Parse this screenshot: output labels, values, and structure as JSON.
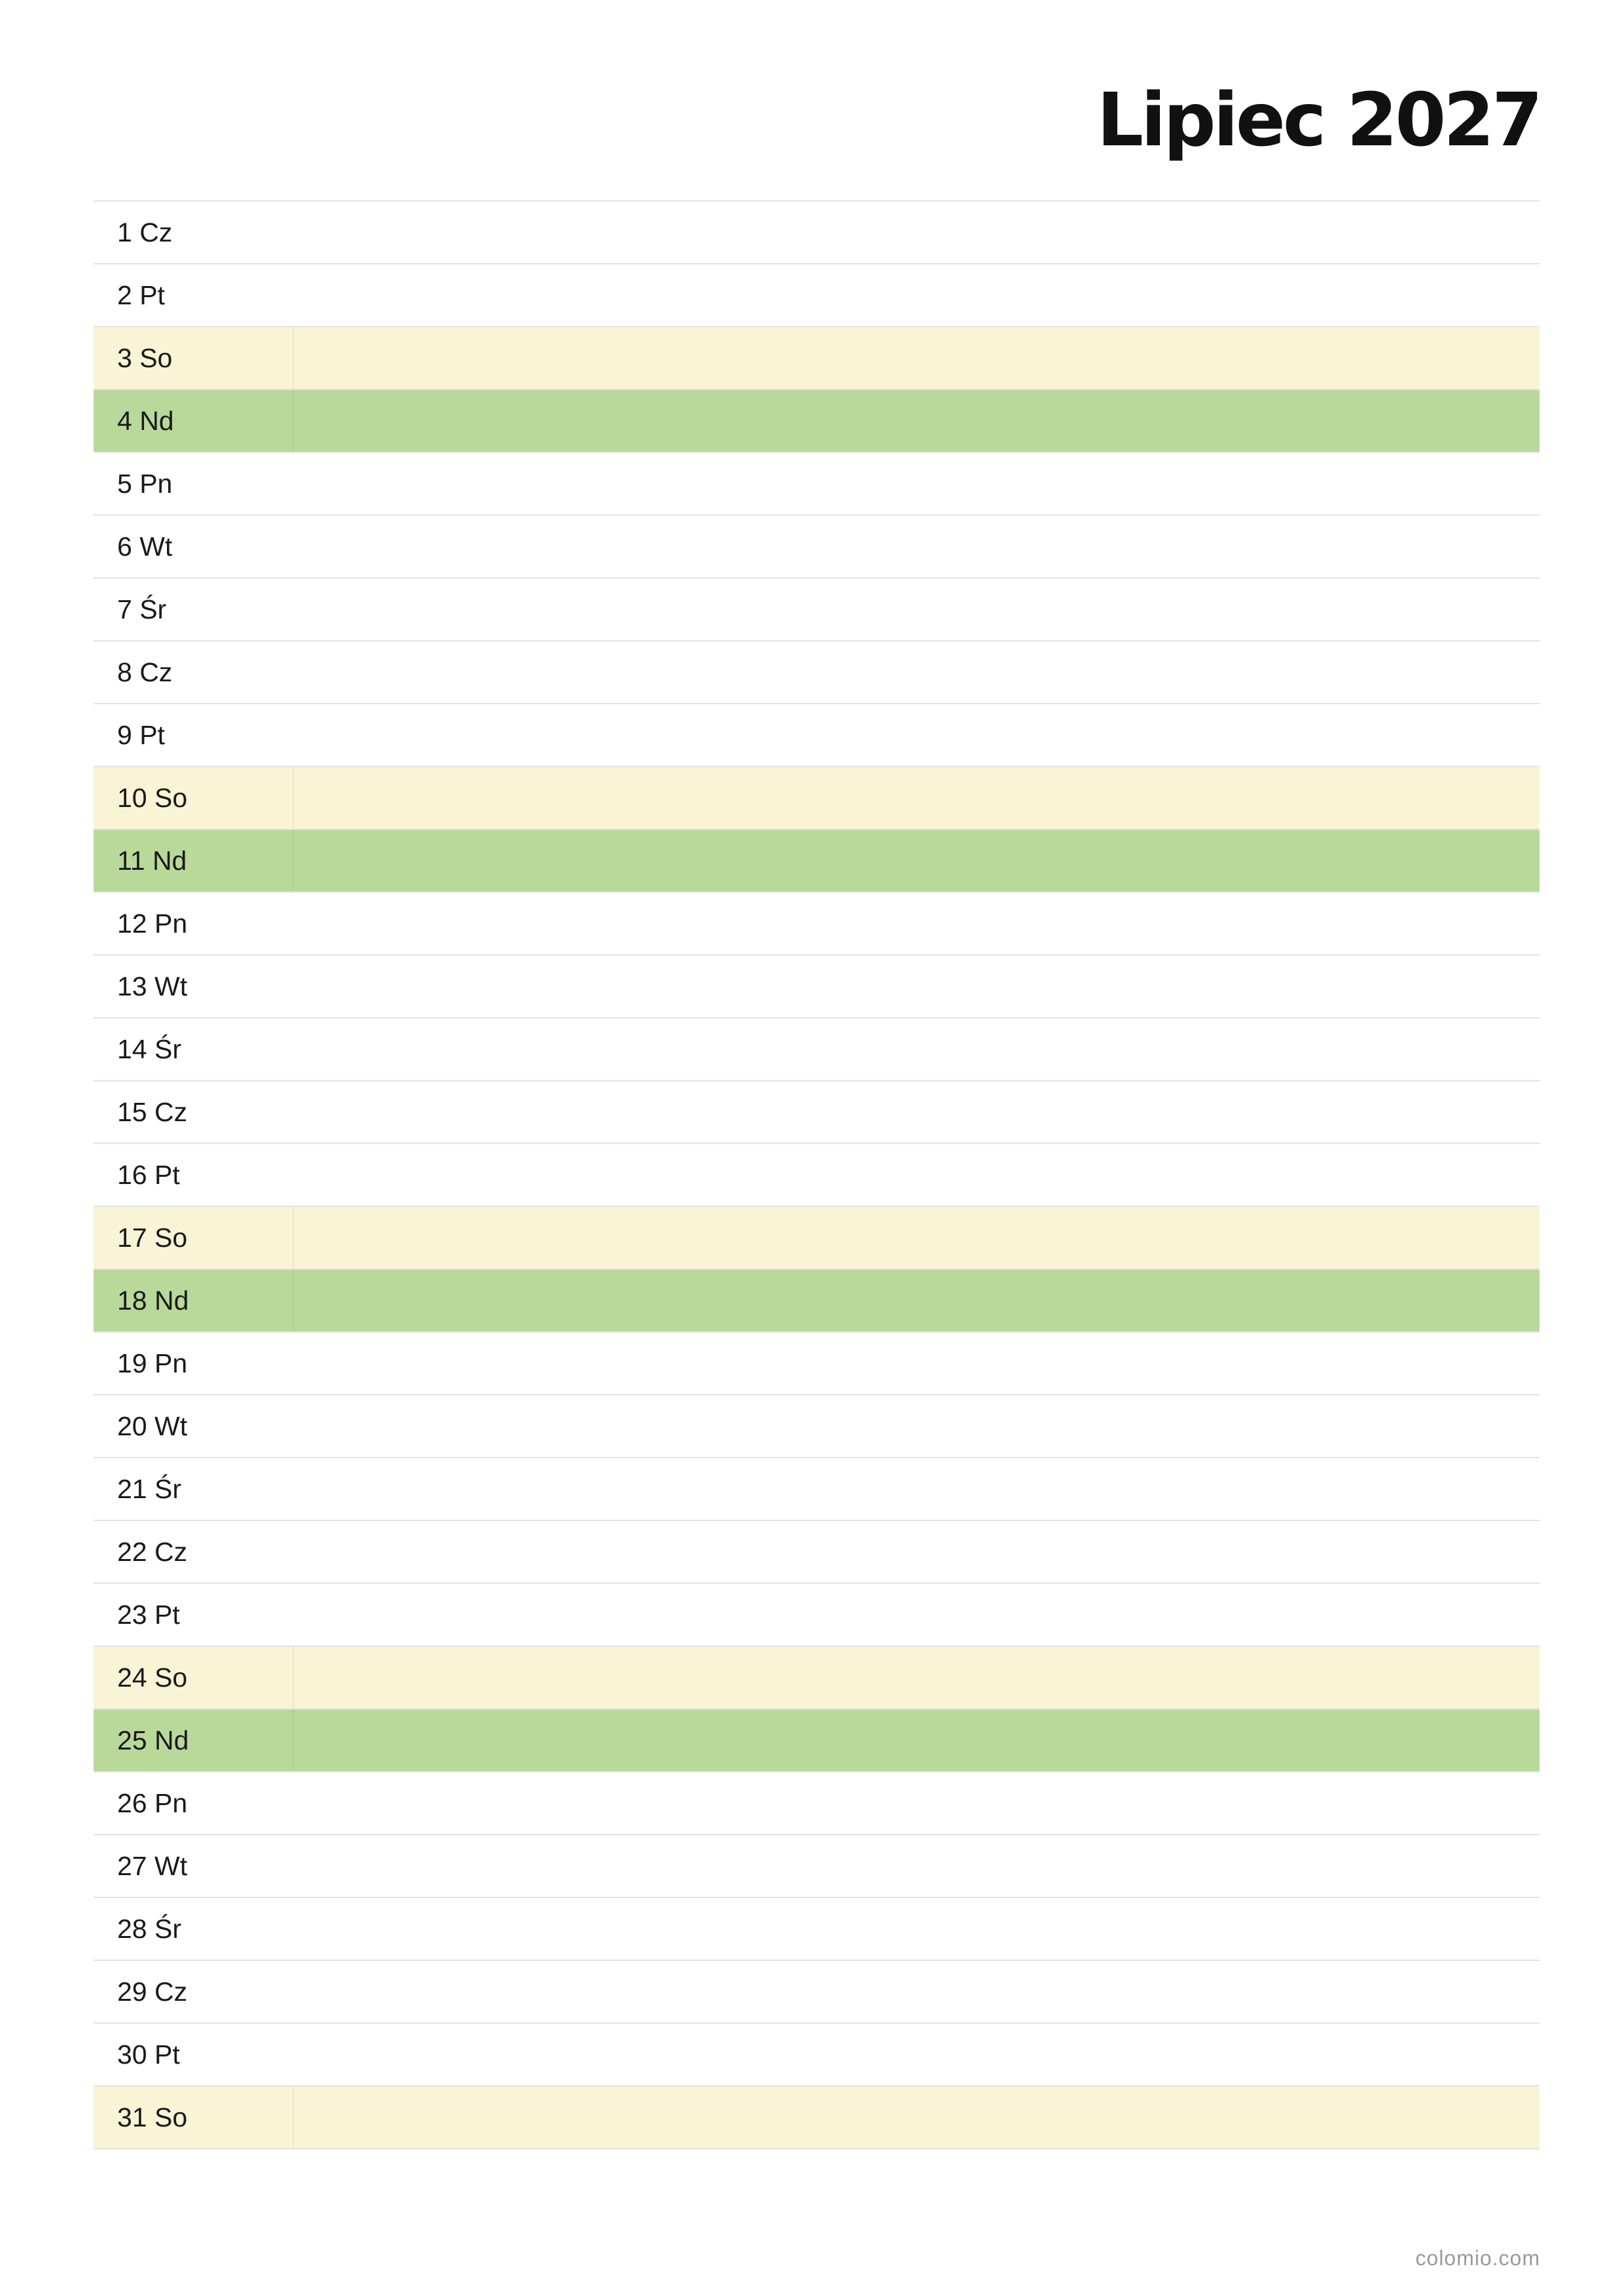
{
  "title": "Lipiec 2027",
  "colors": {
    "weekday": "#ffffff",
    "saturday": "#faf4d6",
    "sunday": "#b8d99a",
    "grid_line": "#e3e3e3"
  },
  "days": [
    {
      "label": "1 Cz",
      "type": "weekday"
    },
    {
      "label": "2 Pt",
      "type": "weekday"
    },
    {
      "label": "3 So",
      "type": "saturday"
    },
    {
      "label": "4 Nd",
      "type": "sunday"
    },
    {
      "label": "5 Pn",
      "type": "weekday"
    },
    {
      "label": "6 Wt",
      "type": "weekday"
    },
    {
      "label": "7 Śr",
      "type": "weekday"
    },
    {
      "label": "8 Cz",
      "type": "weekday"
    },
    {
      "label": "9 Pt",
      "type": "weekday"
    },
    {
      "label": "10 So",
      "type": "saturday"
    },
    {
      "label": "11 Nd",
      "type": "sunday"
    },
    {
      "label": "12 Pn",
      "type": "weekday"
    },
    {
      "label": "13 Wt",
      "type": "weekday"
    },
    {
      "label": "14 Śr",
      "type": "weekday"
    },
    {
      "label": "15 Cz",
      "type": "weekday"
    },
    {
      "label": "16 Pt",
      "type": "weekday"
    },
    {
      "label": "17 So",
      "type": "saturday"
    },
    {
      "label": "18 Nd",
      "type": "sunday"
    },
    {
      "label": "19 Pn",
      "type": "weekday"
    },
    {
      "label": "20 Wt",
      "type": "weekday"
    },
    {
      "label": "21 Śr",
      "type": "weekday"
    },
    {
      "label": "22 Cz",
      "type": "weekday"
    },
    {
      "label": "23 Pt",
      "type": "weekday"
    },
    {
      "label": "24 So",
      "type": "saturday"
    },
    {
      "label": "25 Nd",
      "type": "sunday"
    },
    {
      "label": "26 Pn",
      "type": "weekday"
    },
    {
      "label": "27 Wt",
      "type": "weekday"
    },
    {
      "label": "28 Śr",
      "type": "weekday"
    },
    {
      "label": "29 Cz",
      "type": "weekday"
    },
    {
      "label": "30 Pt",
      "type": "weekday"
    },
    {
      "label": "31 So",
      "type": "saturday"
    }
  ],
  "footer": {
    "brand": "colomio.com"
  }
}
